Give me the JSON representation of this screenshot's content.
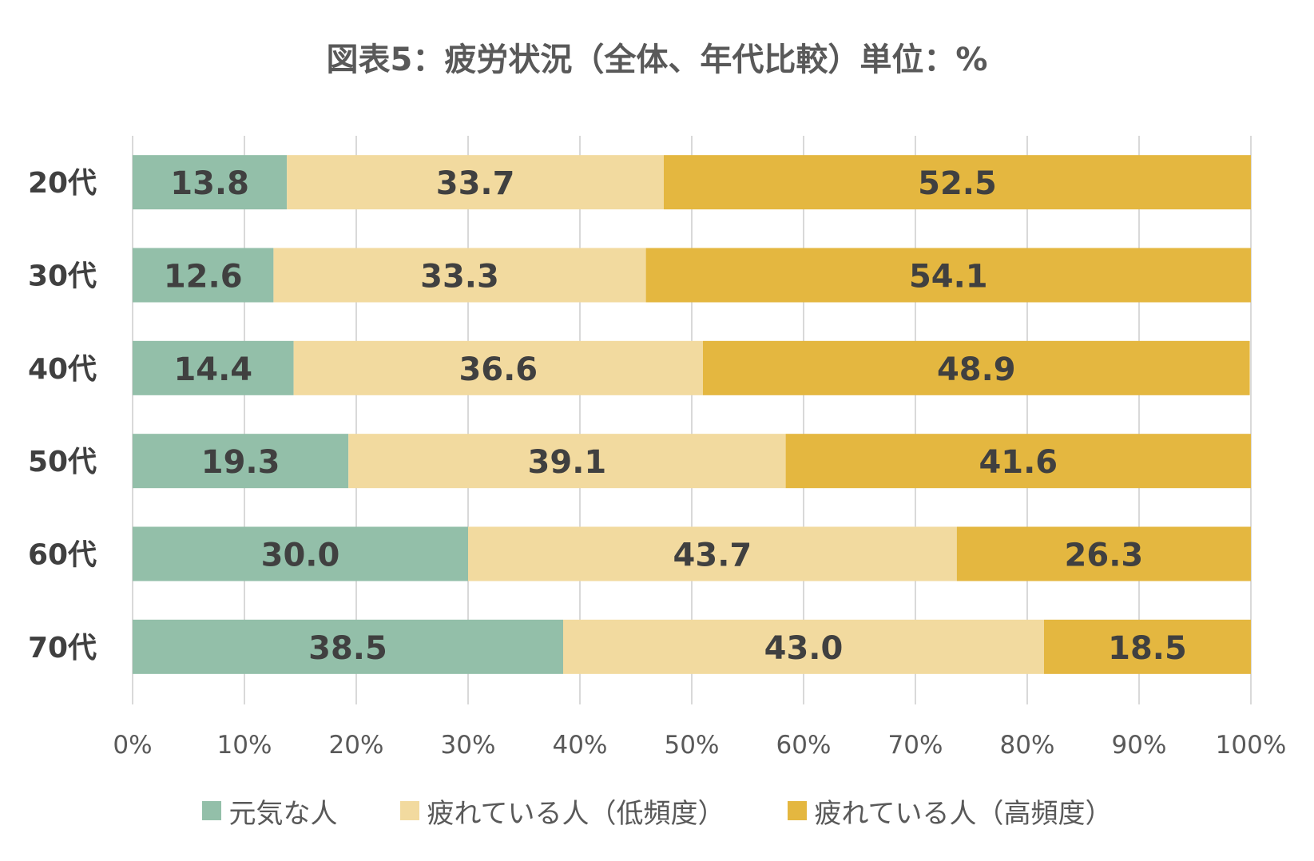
{
  "chart_data": {
    "type": "bar",
    "orientation": "horizontal",
    "stacked": true,
    "title": "図表5：疲労状況（全体、年代比較）単位：%",
    "categories": [
      "20代",
      "30代",
      "40代",
      "50代",
      "60代",
      "70代"
    ],
    "series": [
      {
        "name": "元気な人",
        "color": "#93BFA9",
        "values": [
          13.8,
          12.6,
          14.4,
          19.3,
          30.0,
          38.5
        ]
      },
      {
        "name": "疲れている人（低頻度）",
        "color": "#F2DA9F",
        "values": [
          33.7,
          33.3,
          36.6,
          39.1,
          43.7,
          43.0
        ]
      },
      {
        "name": "疲れている人（高頻度）",
        "color": "#E4B740",
        "values": [
          52.5,
          54.1,
          48.9,
          41.6,
          26.3,
          18.5
        ]
      }
    ],
    "data_labels": [
      [
        "13.8",
        "12.6",
        "14.4",
        "19.3",
        "30.0",
        "38.5"
      ],
      [
        "33.7",
        "33.3",
        "36.6",
        "39.1",
        "43.7",
        "43.0"
      ],
      [
        "52.5",
        "54.1",
        "48.9",
        "41.6",
        "26.3",
        "18.5"
      ]
    ],
    "xlim": [
      0,
      100
    ],
    "x_ticks": [
      "0%",
      "10%",
      "20%",
      "30%",
      "40%",
      "50%",
      "60%",
      "70%",
      "80%",
      "90%",
      "100%"
    ],
    "xlabel": "",
    "ylabel": "",
    "grid": true,
    "legend_position": "bottom"
  }
}
